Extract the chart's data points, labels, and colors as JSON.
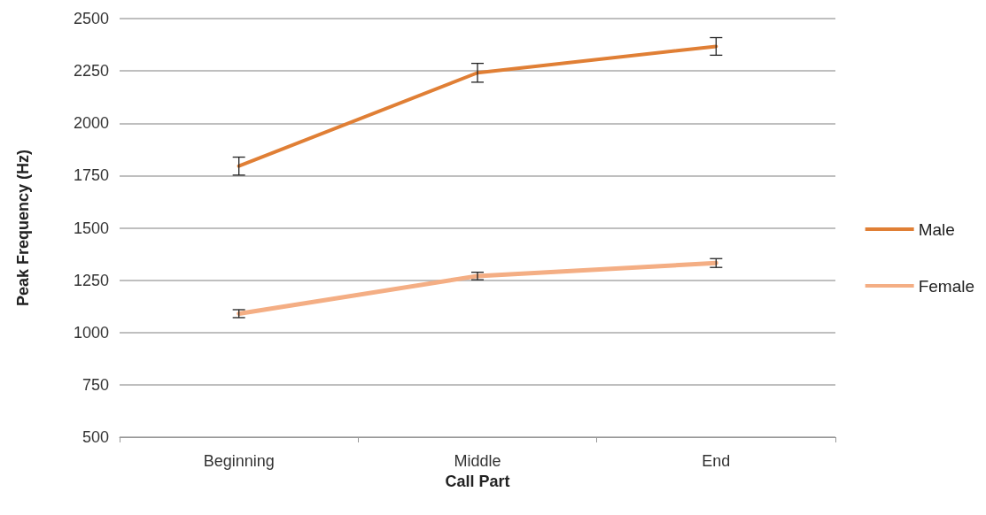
{
  "chart_data": {
    "type": "line",
    "xlabel": "Call Part",
    "ylabel": "Peak Frequency (Hz)",
    "categories": [
      "Beginning",
      "Middle",
      "End"
    ],
    "series": [
      {
        "name": "Male",
        "color": "#e07f35",
        "values": [
          1795,
          2241,
          2367
        ],
        "errors": [
          43,
          45,
          42
        ]
      },
      {
        "name": "Female",
        "color": "#f4ae84",
        "values": [
          1090,
          1270,
          1332
        ],
        "errors": [
          19,
          18,
          21
        ]
      }
    ],
    "ylim": [
      500,
      2500
    ],
    "yticks": [
      500,
      750,
      1000,
      1250,
      1500,
      1750,
      2000,
      2250,
      2500
    ],
    "grid": "y",
    "legend": "right",
    "marker": "none",
    "line_style": "solid"
  }
}
